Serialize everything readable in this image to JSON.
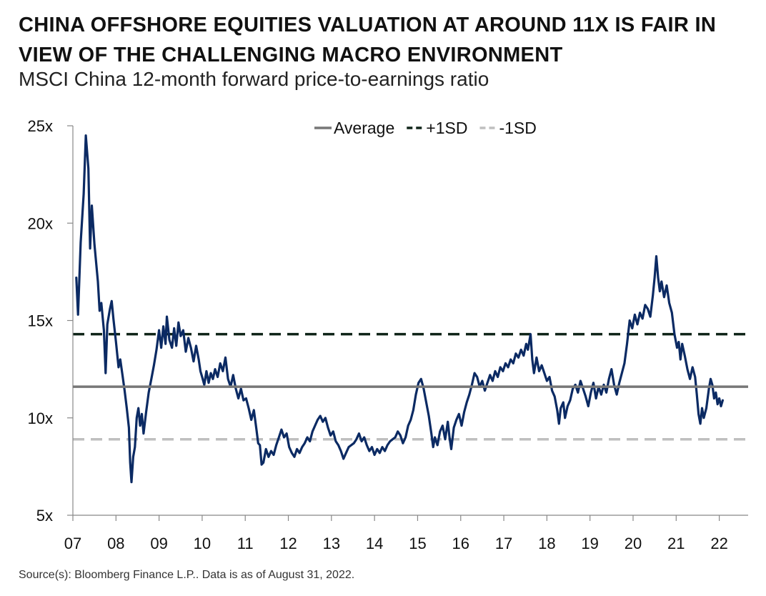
{
  "header": {
    "title": "CHINA OFFSHORE EQUITIES VALUATION AT AROUND 11X IS FAIR IN VIEW OF THE CHALLENGING MACRO ENVIRONMENT",
    "subtitle": "MSCI China 12-month forward price-to-earnings ratio"
  },
  "footer": {
    "source": "Source(s): Bloomberg Finance L.P.. Data is as of August 31, 2022."
  },
  "colors": {
    "series": "#0b2a63",
    "average": "#777777",
    "plus_sd": "#0f2418",
    "minus_sd": "#bfbfbf",
    "axis": "#888888"
  },
  "chart_data": {
    "type": "line",
    "title": "MSCI China 12-month forward price-to-earnings ratio",
    "xlabel": "",
    "ylabel": "",
    "xlim": [
      2007.0,
      2022.67
    ],
    "ylim": [
      5,
      25
    ],
    "x_tick_values": [
      2007,
      2008,
      2009,
      2010,
      2011,
      2012,
      2013,
      2014,
      2015,
      2016,
      2017,
      2018,
      2019,
      2020,
      2021,
      2022
    ],
    "x_tick_labels": [
      "07",
      "08",
      "09",
      "10",
      "11",
      "12",
      "13",
      "14",
      "15",
      "16",
      "17",
      "18",
      "19",
      "20",
      "21",
      "22"
    ],
    "y_tick_values": [
      5,
      10,
      15,
      20,
      25
    ],
    "y_tick_labels": [
      "5x",
      "10x",
      "15x",
      "20x",
      "25x"
    ],
    "grid": false,
    "legend_position": "top-center",
    "legend": [
      {
        "label": "Average",
        "style": "solid",
        "color": "#777777"
      },
      {
        "label": "+1SD",
        "style": "dashed",
        "color": "#0f2418"
      },
      {
        "label": "-1SD",
        "style": "dashed",
        "color": "#bfbfbf"
      }
    ],
    "reference_lines": {
      "average": 11.6,
      "plus_1sd": 14.3,
      "minus_1sd": 8.9
    },
    "series": [
      {
        "color": "#0b2a63",
        "points": [
          [
            2007.08,
            17.2
          ],
          [
            2007.12,
            15.3
          ],
          [
            2007.18,
            19.0
          ],
          [
            2007.25,
            21.5
          ],
          [
            2007.3,
            24.5
          ],
          [
            2007.36,
            22.8
          ],
          [
            2007.4,
            18.7
          ],
          [
            2007.44,
            20.9
          ],
          [
            2007.5,
            18.9
          ],
          [
            2007.58,
            17.0
          ],
          [
            2007.62,
            15.5
          ],
          [
            2007.66,
            15.9
          ],
          [
            2007.72,
            14.5
          ],
          [
            2007.76,
            12.3
          ],
          [
            2007.8,
            14.8
          ],
          [
            2007.86,
            15.6
          ],
          [
            2007.9,
            16.0
          ],
          [
            2007.94,
            15.1
          ],
          [
            2008.0,
            13.9
          ],
          [
            2008.06,
            12.6
          ],
          [
            2008.1,
            13.0
          ],
          [
            2008.15,
            12.2
          ],
          [
            2008.2,
            11.4
          ],
          [
            2008.25,
            10.5
          ],
          [
            2008.3,
            9.5
          ],
          [
            2008.33,
            7.7
          ],
          [
            2008.36,
            6.7
          ],
          [
            2008.4,
            8.0
          ],
          [
            2008.44,
            8.5
          ],
          [
            2008.48,
            10.0
          ],
          [
            2008.52,
            10.5
          ],
          [
            2008.56,
            9.6
          ],
          [
            2008.6,
            10.2
          ],
          [
            2008.64,
            9.2
          ],
          [
            2008.7,
            10.3
          ],
          [
            2008.76,
            11.3
          ],
          [
            2008.82,
            12.0
          ],
          [
            2008.88,
            12.7
          ],
          [
            2008.94,
            13.5
          ],
          [
            2009.0,
            14.5
          ],
          [
            2009.05,
            13.6
          ],
          [
            2009.1,
            14.7
          ],
          [
            2009.15,
            13.8
          ],
          [
            2009.18,
            15.2
          ],
          [
            2009.24,
            14.0
          ],
          [
            2009.3,
            13.6
          ],
          [
            2009.35,
            14.6
          ],
          [
            2009.4,
            13.7
          ],
          [
            2009.45,
            14.9
          ],
          [
            2009.5,
            14.2
          ],
          [
            2009.56,
            14.5
          ],
          [
            2009.62,
            13.4
          ],
          [
            2009.68,
            14.1
          ],
          [
            2009.74,
            13.6
          ],
          [
            2009.8,
            12.9
          ],
          [
            2009.86,
            13.7
          ],
          [
            2009.92,
            13.0
          ],
          [
            2009.96,
            12.4
          ],
          [
            2010.0,
            12.1
          ],
          [
            2010.05,
            11.7
          ],
          [
            2010.1,
            12.4
          ],
          [
            2010.15,
            11.8
          ],
          [
            2010.2,
            12.3
          ],
          [
            2010.25,
            12.0
          ],
          [
            2010.3,
            12.5
          ],
          [
            2010.36,
            12.1
          ],
          [
            2010.42,
            12.8
          ],
          [
            2010.48,
            12.4
          ],
          [
            2010.54,
            13.1
          ],
          [
            2010.6,
            12.0
          ],
          [
            2010.66,
            11.6
          ],
          [
            2010.72,
            12.2
          ],
          [
            2010.78,
            11.5
          ],
          [
            2010.84,
            11.0
          ],
          [
            2010.9,
            11.5
          ],
          [
            2010.96,
            10.9
          ],
          [
            2011.02,
            11.0
          ],
          [
            2011.08,
            10.5
          ],
          [
            2011.14,
            9.9
          ],
          [
            2011.2,
            10.4
          ],
          [
            2011.26,
            9.4
          ],
          [
            2011.3,
            8.7
          ],
          [
            2011.34,
            8.6
          ],
          [
            2011.38,
            7.6
          ],
          [
            2011.42,
            7.7
          ],
          [
            2011.48,
            8.4
          ],
          [
            2011.54,
            8.0
          ],
          [
            2011.6,
            8.3
          ],
          [
            2011.66,
            8.1
          ],
          [
            2011.72,
            8.6
          ],
          [
            2011.78,
            9.0
          ],
          [
            2011.84,
            9.4
          ],
          [
            2011.9,
            9.0
          ],
          [
            2011.96,
            9.2
          ],
          [
            2012.02,
            8.5
          ],
          [
            2012.08,
            8.2
          ],
          [
            2012.14,
            8.0
          ],
          [
            2012.2,
            8.4
          ],
          [
            2012.26,
            8.2
          ],
          [
            2012.32,
            8.5
          ],
          [
            2012.38,
            8.7
          ],
          [
            2012.44,
            9.0
          ],
          [
            2012.5,
            8.8
          ],
          [
            2012.56,
            9.3
          ],
          [
            2012.62,
            9.6
          ],
          [
            2012.68,
            9.9
          ],
          [
            2012.74,
            10.1
          ],
          [
            2012.8,
            9.8
          ],
          [
            2012.86,
            10.0
          ],
          [
            2012.92,
            9.5
          ],
          [
            2012.98,
            9.1
          ],
          [
            2013.04,
            9.3
          ],
          [
            2013.1,
            8.8
          ],
          [
            2013.16,
            8.6
          ],
          [
            2013.22,
            8.3
          ],
          [
            2013.28,
            7.9
          ],
          [
            2013.34,
            8.2
          ],
          [
            2013.4,
            8.5
          ],
          [
            2013.46,
            8.6
          ],
          [
            2013.52,
            8.7
          ],
          [
            2013.58,
            8.9
          ],
          [
            2013.64,
            9.2
          ],
          [
            2013.7,
            8.8
          ],
          [
            2013.76,
            9.0
          ],
          [
            2013.82,
            8.6
          ],
          [
            2013.88,
            8.3
          ],
          [
            2013.94,
            8.5
          ],
          [
            2014.0,
            8.1
          ],
          [
            2014.06,
            8.4
          ],
          [
            2014.12,
            8.2
          ],
          [
            2014.18,
            8.5
          ],
          [
            2014.24,
            8.3
          ],
          [
            2014.3,
            8.6
          ],
          [
            2014.36,
            8.8
          ],
          [
            2014.42,
            8.9
          ],
          [
            2014.48,
            9.0
          ],
          [
            2014.54,
            9.3
          ],
          [
            2014.6,
            9.1
          ],
          [
            2014.66,
            8.7
          ],
          [
            2014.72,
            9.0
          ],
          [
            2014.78,
            9.6
          ],
          [
            2014.84,
            9.9
          ],
          [
            2014.9,
            10.4
          ],
          [
            2014.96,
            11.2
          ],
          [
            2015.02,
            11.8
          ],
          [
            2015.08,
            12.0
          ],
          [
            2015.14,
            11.5
          ],
          [
            2015.2,
            10.8
          ],
          [
            2015.26,
            10.1
          ],
          [
            2015.32,
            9.2
          ],
          [
            2015.36,
            8.5
          ],
          [
            2015.4,
            9.0
          ],
          [
            2015.46,
            8.6
          ],
          [
            2015.52,
            9.3
          ],
          [
            2015.58,
            9.6
          ],
          [
            2015.64,
            8.9
          ],
          [
            2015.7,
            9.8
          ],
          [
            2015.74,
            9.0
          ],
          [
            2015.78,
            8.4
          ],
          [
            2015.84,
            9.5
          ],
          [
            2015.9,
            9.9
          ],
          [
            2015.96,
            10.2
          ],
          [
            2016.02,
            9.6
          ],
          [
            2016.08,
            10.3
          ],
          [
            2016.14,
            10.8
          ],
          [
            2016.2,
            11.2
          ],
          [
            2016.26,
            11.7
          ],
          [
            2016.32,
            12.3
          ],
          [
            2016.38,
            12.1
          ],
          [
            2016.44,
            11.6
          ],
          [
            2016.5,
            11.9
          ],
          [
            2016.56,
            11.4
          ],
          [
            2016.62,
            11.8
          ],
          [
            2016.68,
            12.2
          ],
          [
            2016.74,
            11.9
          ],
          [
            2016.8,
            12.4
          ],
          [
            2016.86,
            12.1
          ],
          [
            2016.92,
            12.6
          ],
          [
            2016.98,
            12.4
          ],
          [
            2017.04,
            12.8
          ],
          [
            2017.1,
            12.6
          ],
          [
            2017.16,
            13.0
          ],
          [
            2017.22,
            12.8
          ],
          [
            2017.28,
            13.3
          ],
          [
            2017.34,
            13.1
          ],
          [
            2017.4,
            13.5
          ],
          [
            2017.46,
            13.2
          ],
          [
            2017.52,
            13.8
          ],
          [
            2017.56,
            13.5
          ],
          [
            2017.62,
            14.3
          ],
          [
            2017.66,
            13.0
          ],
          [
            2017.7,
            12.3
          ],
          [
            2017.76,
            13.1
          ],
          [
            2017.82,
            12.4
          ],
          [
            2017.88,
            12.7
          ],
          [
            2017.94,
            12.3
          ],
          [
            2018.0,
            11.9
          ],
          [
            2018.06,
            12.1
          ],
          [
            2018.12,
            11.4
          ],
          [
            2018.18,
            11.1
          ],
          [
            2018.24,
            10.4
          ],
          [
            2018.28,
            9.7
          ],
          [
            2018.32,
            10.5
          ],
          [
            2018.38,
            10.8
          ],
          [
            2018.42,
            10.0
          ],
          [
            2018.48,
            10.6
          ],
          [
            2018.54,
            10.9
          ],
          [
            2018.6,
            11.5
          ],
          [
            2018.66,
            11.7
          ],
          [
            2018.72,
            11.3
          ],
          [
            2018.78,
            11.9
          ],
          [
            2018.84,
            11.5
          ],
          [
            2018.9,
            11.1
          ],
          [
            2018.96,
            10.6
          ],
          [
            2019.02,
            11.3
          ],
          [
            2019.08,
            11.8
          ],
          [
            2019.14,
            11.0
          ],
          [
            2019.2,
            11.6
          ],
          [
            2019.26,
            11.2
          ],
          [
            2019.32,
            11.7
          ],
          [
            2019.38,
            11.3
          ],
          [
            2019.44,
            12.0
          ],
          [
            2019.5,
            12.5
          ],
          [
            2019.56,
            11.7
          ],
          [
            2019.62,
            11.2
          ],
          [
            2019.68,
            11.8
          ],
          [
            2019.74,
            12.3
          ],
          [
            2019.8,
            12.8
          ],
          [
            2019.86,
            13.8
          ],
          [
            2019.92,
            15.0
          ],
          [
            2019.98,
            14.6
          ],
          [
            2020.04,
            15.3
          ],
          [
            2020.1,
            14.8
          ],
          [
            2020.16,
            15.4
          ],
          [
            2020.22,
            15.1
          ],
          [
            2020.28,
            15.8
          ],
          [
            2020.34,
            15.6
          ],
          [
            2020.4,
            15.2
          ],
          [
            2020.46,
            16.3
          ],
          [
            2020.5,
            17.2
          ],
          [
            2020.54,
            18.3
          ],
          [
            2020.58,
            17.2
          ],
          [
            2020.62,
            16.5
          ],
          [
            2020.66,
            17.0
          ],
          [
            2020.72,
            16.2
          ],
          [
            2020.78,
            16.8
          ],
          [
            2020.84,
            15.9
          ],
          [
            2020.9,
            15.4
          ],
          [
            2020.96,
            14.3
          ],
          [
            2021.02,
            13.6
          ],
          [
            2021.06,
            13.9
          ],
          [
            2021.1,
            13.0
          ],
          [
            2021.14,
            13.8
          ],
          [
            2021.2,
            13.2
          ],
          [
            2021.26,
            12.5
          ],
          [
            2021.32,
            12.0
          ],
          [
            2021.38,
            12.6
          ],
          [
            2021.44,
            12.1
          ],
          [
            2021.48,
            11.2
          ],
          [
            2021.52,
            10.2
          ],
          [
            2021.56,
            9.7
          ],
          [
            2021.6,
            10.5
          ],
          [
            2021.64,
            10.0
          ],
          [
            2021.7,
            10.5
          ],
          [
            2021.76,
            11.5
          ],
          [
            2021.8,
            12.0
          ],
          [
            2021.84,
            11.7
          ],
          [
            2021.88,
            11.0
          ],
          [
            2021.92,
            11.3
          ],
          [
            2021.96,
            10.7
          ],
          [
            2022.0,
            11.0
          ],
          [
            2022.04,
            10.6
          ],
          [
            2022.08,
            10.9
          ]
        ]
      }
    ]
  }
}
